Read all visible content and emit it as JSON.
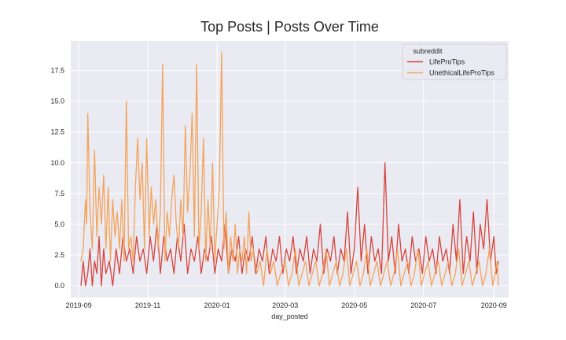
{
  "chart_data": {
    "type": "line",
    "title": "Top Posts | Posts Over Time",
    "xlabel": "day_posted",
    "ylabel": "",
    "xlim": [
      "2019-08-25",
      "2020-09-14"
    ],
    "ylim": [
      -0.95,
      19.9
    ],
    "x_ticks": [
      "2019-09",
      "2019-11",
      "2020-01",
      "2020-03",
      "2020-05",
      "2020-07",
      "2020-09"
    ],
    "y_ticks": [
      "0.0",
      "2.5",
      "5.0",
      "7.5",
      "10.0",
      "12.5",
      "15.0",
      "17.5"
    ],
    "grid": true,
    "legend": {
      "title": "subreddit",
      "position": "top-right"
    },
    "series": [
      {
        "name": "LifeProTips",
        "color": "#d6443c",
        "points": [
          [
            "2019-09-03",
            0
          ],
          [
            "2019-09-05",
            2
          ],
          [
            "2019-09-07",
            0
          ],
          [
            "2019-09-09",
            1
          ],
          [
            "2019-09-11",
            3
          ],
          [
            "2019-09-13",
            0
          ],
          [
            "2019-09-15",
            2
          ],
          [
            "2019-09-17",
            1
          ],
          [
            "2019-09-19",
            4
          ],
          [
            "2019-09-21",
            0
          ],
          [
            "2019-09-23",
            3
          ],
          [
            "2019-09-25",
            1
          ],
          [
            "2019-09-28",
            2
          ],
          [
            "2019-10-01",
            0
          ],
          [
            "2019-10-04",
            3
          ],
          [
            "2019-10-07",
            1
          ],
          [
            "2019-10-10",
            4
          ],
          [
            "2019-10-13",
            2
          ],
          [
            "2019-10-16",
            3
          ],
          [
            "2019-10-19",
            1
          ],
          [
            "2019-10-22",
            4
          ],
          [
            "2019-10-25",
            2
          ],
          [
            "2019-10-28",
            3
          ],
          [
            "2019-10-31",
            1
          ],
          [
            "2019-11-03",
            4
          ],
          [
            "2019-11-06",
            2
          ],
          [
            "2019-11-09",
            5
          ],
          [
            "2019-11-12",
            1
          ],
          [
            "2019-11-15",
            4
          ],
          [
            "2019-11-18",
            2
          ],
          [
            "2019-11-21",
            3
          ],
          [
            "2019-11-24",
            1
          ],
          [
            "2019-11-27",
            4
          ],
          [
            "2019-11-30",
            2
          ],
          [
            "2019-12-03",
            5
          ],
          [
            "2019-12-06",
            1
          ],
          [
            "2019-12-09",
            3
          ],
          [
            "2019-12-12",
            2
          ],
          [
            "2019-12-15",
            4
          ],
          [
            "2019-12-18",
            1
          ],
          [
            "2019-12-21",
            3
          ],
          [
            "2019-12-24",
            2
          ],
          [
            "2019-12-27",
            4
          ],
          [
            "2019-12-30",
            1
          ],
          [
            "2020-01-02",
            3
          ],
          [
            "2020-01-05",
            2
          ],
          [
            "2020-01-08",
            5
          ],
          [
            "2020-01-11",
            1
          ],
          [
            "2020-01-14",
            3
          ],
          [
            "2020-01-17",
            2
          ],
          [
            "2020-01-20",
            4
          ],
          [
            "2020-01-23",
            1
          ],
          [
            "2020-01-26",
            3
          ],
          [
            "2020-01-29",
            2
          ],
          [
            "2020-02-01",
            4
          ],
          [
            "2020-02-04",
            1
          ],
          [
            "2020-02-07",
            3
          ],
          [
            "2020-02-10",
            2
          ],
          [
            "2020-02-13",
            4
          ],
          [
            "2020-02-16",
            1
          ],
          [
            "2020-02-19",
            3
          ],
          [
            "2020-02-22",
            2
          ],
          [
            "2020-02-25",
            4
          ],
          [
            "2020-02-28",
            1
          ],
          [
            "2020-03-02",
            3
          ],
          [
            "2020-03-05",
            2
          ],
          [
            "2020-03-08",
            4
          ],
          [
            "2020-03-11",
            1
          ],
          [
            "2020-03-14",
            3
          ],
          [
            "2020-03-17",
            2
          ],
          [
            "2020-03-20",
            4
          ],
          [
            "2020-03-23",
            1
          ],
          [
            "2020-03-26",
            3
          ],
          [
            "2020-03-29",
            2
          ],
          [
            "2020-04-01",
            5
          ],
          [
            "2020-04-04",
            1
          ],
          [
            "2020-04-07",
            3
          ],
          [
            "2020-04-10",
            2
          ],
          [
            "2020-04-13",
            4
          ],
          [
            "2020-04-16",
            1
          ],
          [
            "2020-04-19",
            3
          ],
          [
            "2020-04-22",
            2
          ],
          [
            "2020-04-25",
            6
          ],
          [
            "2020-04-28",
            1
          ],
          [
            "2020-05-01",
            3
          ],
          [
            "2020-05-04",
            8
          ],
          [
            "2020-05-07",
            2
          ],
          [
            "2020-05-10",
            5
          ],
          [
            "2020-05-13",
            1
          ],
          [
            "2020-05-16",
            4
          ],
          [
            "2020-05-19",
            2
          ],
          [
            "2020-05-22",
            3
          ],
          [
            "2020-05-25",
            1
          ],
          [
            "2020-05-28",
            10
          ],
          [
            "2020-05-31",
            2
          ],
          [
            "2020-06-03",
            4
          ],
          [
            "2020-06-06",
            1
          ],
          [
            "2020-06-09",
            5
          ],
          [
            "2020-06-12",
            2
          ],
          [
            "2020-06-15",
            3
          ],
          [
            "2020-06-18",
            1
          ],
          [
            "2020-06-21",
            4
          ],
          [
            "2020-06-24",
            2
          ],
          [
            "2020-06-27",
            3
          ],
          [
            "2020-06-30",
            1
          ],
          [
            "2020-07-03",
            4
          ],
          [
            "2020-07-06",
            2
          ],
          [
            "2020-07-09",
            3
          ],
          [
            "2020-07-12",
            1
          ],
          [
            "2020-07-15",
            4
          ],
          [
            "2020-07-18",
            2
          ],
          [
            "2020-07-21",
            3
          ],
          [
            "2020-07-24",
            1
          ],
          [
            "2020-07-27",
            5
          ],
          [
            "2020-07-30",
            2
          ],
          [
            "2020-08-02",
            7
          ],
          [
            "2020-08-05",
            1
          ],
          [
            "2020-08-08",
            4
          ],
          [
            "2020-08-11",
            2
          ],
          [
            "2020-08-14",
            6
          ],
          [
            "2020-08-17",
            1
          ],
          [
            "2020-08-20",
            5
          ],
          [
            "2020-08-23",
            3
          ],
          [
            "2020-08-26",
            7
          ],
          [
            "2020-08-29",
            2
          ],
          [
            "2020-09-01",
            4
          ],
          [
            "2020-09-03",
            1
          ],
          [
            "2020-09-05",
            2
          ]
        ]
      },
      {
        "name": "UnethicalLifeProTips",
        "color": "#f4a35b",
        "points": [
          [
            "2019-09-03",
            2
          ],
          [
            "2019-09-05",
            3
          ],
          [
            "2019-09-07",
            7
          ],
          [
            "2019-09-08",
            5
          ],
          [
            "2019-09-09",
            14
          ],
          [
            "2019-09-11",
            6
          ],
          [
            "2019-09-13",
            3
          ],
          [
            "2019-09-15",
            11
          ],
          [
            "2019-09-17",
            4
          ],
          [
            "2019-09-19",
            8
          ],
          [
            "2019-09-21",
            5
          ],
          [
            "2019-09-23",
            9
          ],
          [
            "2019-09-25",
            3
          ],
          [
            "2019-09-27",
            8
          ],
          [
            "2019-09-29",
            2
          ],
          [
            "2019-10-01",
            7
          ],
          [
            "2019-10-03",
            4
          ],
          [
            "2019-10-05",
            6
          ],
          [
            "2019-10-07",
            3
          ],
          [
            "2019-10-09",
            7
          ],
          [
            "2019-10-11",
            2
          ],
          [
            "2019-10-13",
            15
          ],
          [
            "2019-10-15",
            3
          ],
          [
            "2019-10-17",
            4
          ],
          [
            "2019-10-19",
            2
          ],
          [
            "2019-10-21",
            8
          ],
          [
            "2019-10-23",
            12
          ],
          [
            "2019-10-25",
            7
          ],
          [
            "2019-10-27",
            10
          ],
          [
            "2019-10-29",
            3
          ],
          [
            "2019-10-31",
            12
          ],
          [
            "2019-11-02",
            4
          ],
          [
            "2019-11-04",
            8
          ],
          [
            "2019-11-06",
            5
          ],
          [
            "2019-11-08",
            7
          ],
          [
            "2019-11-10",
            3
          ],
          [
            "2019-11-12",
            6
          ],
          [
            "2019-11-14",
            18
          ],
          [
            "2019-11-16",
            2
          ],
          [
            "2019-11-18",
            6
          ],
          [
            "2019-11-20",
            4
          ],
          [
            "2019-11-22",
            7
          ],
          [
            "2019-11-24",
            9
          ],
          [
            "2019-11-26",
            5
          ],
          [
            "2019-11-28",
            3
          ],
          [
            "2019-11-30",
            7
          ],
          [
            "2019-12-02",
            4
          ],
          [
            "2019-12-04",
            13
          ],
          [
            "2019-12-06",
            6
          ],
          [
            "2019-12-08",
            9
          ],
          [
            "2019-12-10",
            14
          ],
          [
            "2019-12-12",
            4
          ],
          [
            "2019-12-14",
            18
          ],
          [
            "2019-12-16",
            3
          ],
          [
            "2019-12-18",
            6
          ],
          [
            "2019-12-20",
            12
          ],
          [
            "2019-12-22",
            2
          ],
          [
            "2019-12-24",
            7
          ],
          [
            "2019-12-26",
            3
          ],
          [
            "2019-12-28",
            10
          ],
          [
            "2019-12-30",
            2
          ],
          [
            "2020-01-01",
            5
          ],
          [
            "2020-01-03",
            8
          ],
          [
            "2020-01-05",
            19
          ],
          [
            "2020-01-07",
            3
          ],
          [
            "2020-01-09",
            6
          ],
          [
            "2020-01-11",
            1
          ],
          [
            "2020-01-13",
            4
          ],
          [
            "2020-01-15",
            2
          ],
          [
            "2020-01-17",
            5
          ],
          [
            "2020-01-19",
            1
          ],
          [
            "2020-01-21",
            3
          ],
          [
            "2020-01-23",
            2
          ],
          [
            "2020-01-25",
            4
          ],
          [
            "2020-01-27",
            1
          ],
          [
            "2020-01-29",
            6
          ],
          [
            "2020-01-31",
            2
          ],
          [
            "2020-02-02",
            3
          ],
          [
            "2020-02-05",
            1
          ],
          [
            "2020-02-08",
            2
          ],
          [
            "2020-02-11",
            0
          ],
          [
            "2020-02-14",
            3
          ],
          [
            "2020-02-17",
            1
          ],
          [
            "2020-02-20",
            2
          ],
          [
            "2020-02-23",
            0
          ],
          [
            "2020-02-26",
            1
          ],
          [
            "2020-03-01",
            2
          ],
          [
            "2020-03-04",
            0
          ],
          [
            "2020-03-07",
            1
          ],
          [
            "2020-03-10",
            3
          ],
          [
            "2020-03-13",
            0
          ],
          [
            "2020-03-16",
            1
          ],
          [
            "2020-03-19",
            2
          ],
          [
            "2020-03-22",
            0
          ],
          [
            "2020-03-25",
            1
          ],
          [
            "2020-03-28",
            2
          ],
          [
            "2020-03-31",
            0
          ],
          [
            "2020-04-03",
            1
          ],
          [
            "2020-04-06",
            3
          ],
          [
            "2020-04-09",
            0
          ],
          [
            "2020-04-12",
            1
          ],
          [
            "2020-04-15",
            2
          ],
          [
            "2020-04-18",
            0
          ],
          [
            "2020-04-21",
            1
          ],
          [
            "2020-04-24",
            3
          ],
          [
            "2020-04-27",
            0
          ],
          [
            "2020-04-30",
            1
          ],
          [
            "2020-05-03",
            2
          ],
          [
            "2020-05-06",
            0
          ],
          [
            "2020-05-09",
            1
          ],
          [
            "2020-05-12",
            3
          ],
          [
            "2020-05-15",
            0
          ],
          [
            "2020-05-18",
            1
          ],
          [
            "2020-05-21",
            2
          ],
          [
            "2020-05-24",
            0
          ],
          [
            "2020-05-27",
            1
          ],
          [
            "2020-05-30",
            2
          ],
          [
            "2020-06-02",
            0
          ],
          [
            "2020-06-05",
            1
          ],
          [
            "2020-06-08",
            3
          ],
          [
            "2020-06-11",
            0
          ],
          [
            "2020-06-14",
            1
          ],
          [
            "2020-06-17",
            2
          ],
          [
            "2020-06-20",
            0
          ],
          [
            "2020-06-23",
            1
          ],
          [
            "2020-06-26",
            3
          ],
          [
            "2020-06-29",
            0
          ],
          [
            "2020-07-02",
            1
          ],
          [
            "2020-07-05",
            2
          ],
          [
            "2020-07-08",
            0
          ],
          [
            "2020-07-11",
            1
          ],
          [
            "2020-07-14",
            2
          ],
          [
            "2020-07-17",
            0
          ],
          [
            "2020-07-20",
            1
          ],
          [
            "2020-07-23",
            2
          ],
          [
            "2020-07-26",
            0
          ],
          [
            "2020-07-29",
            1
          ],
          [
            "2020-08-01",
            3
          ],
          [
            "2020-08-04",
            0
          ],
          [
            "2020-08-07",
            1
          ],
          [
            "2020-08-10",
            2
          ],
          [
            "2020-08-13",
            0
          ],
          [
            "2020-08-16",
            1
          ],
          [
            "2020-08-19",
            2
          ],
          [
            "2020-08-22",
            0
          ],
          [
            "2020-08-25",
            1
          ],
          [
            "2020-08-28",
            3
          ],
          [
            "2020-08-31",
            0
          ],
          [
            "2020-09-02",
            1
          ],
          [
            "2020-09-04",
            2
          ],
          [
            "2020-09-05",
            0
          ]
        ]
      }
    ]
  }
}
